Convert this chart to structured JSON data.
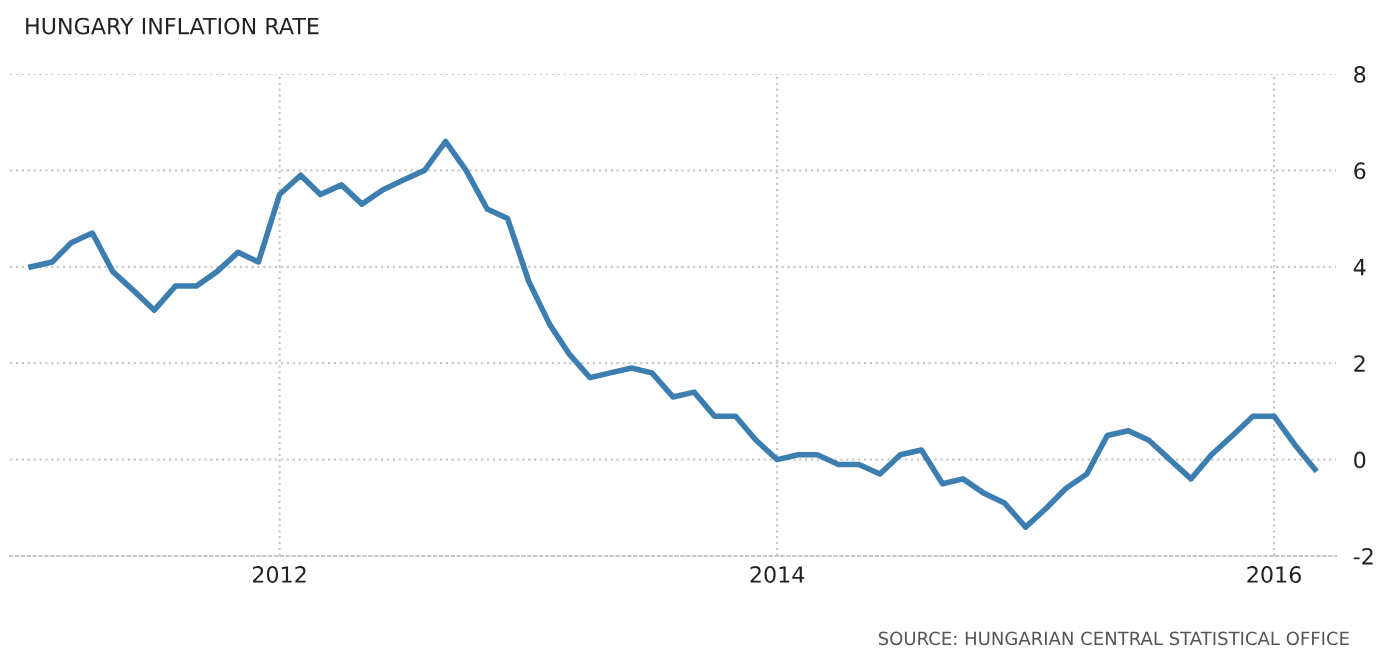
{
  "chart_data": {
    "type": "line",
    "title": "HUNGARY INFLATION RATE",
    "x": [
      "2011-01",
      "2011-02",
      "2011-03",
      "2011-04",
      "2011-05",
      "2011-06",
      "2011-07",
      "2011-08",
      "2011-09",
      "2011-10",
      "2011-11",
      "2011-12",
      "2012-01",
      "2012-02",
      "2012-03",
      "2012-04",
      "2012-05",
      "2012-06",
      "2012-07",
      "2012-08",
      "2012-09",
      "2012-10",
      "2012-11",
      "2012-12",
      "2013-01",
      "2013-02",
      "2013-03",
      "2013-04",
      "2013-05",
      "2013-06",
      "2013-07",
      "2013-08",
      "2013-09",
      "2013-10",
      "2013-11",
      "2013-12",
      "2014-01",
      "2014-02",
      "2014-03",
      "2014-04",
      "2014-05",
      "2014-06",
      "2014-07",
      "2014-08",
      "2014-09",
      "2014-10",
      "2014-11",
      "2014-12",
      "2015-01",
      "2015-02",
      "2015-03",
      "2015-04",
      "2015-05",
      "2015-06",
      "2015-07",
      "2015-08",
      "2015-09",
      "2015-10",
      "2015-11",
      "2015-12",
      "2016-01",
      "2016-02",
      "2016-03"
    ],
    "series": [
      {
        "color": "#3d7eb0",
        "values": [
          4.0,
          4.1,
          4.5,
          4.7,
          3.9,
          3.5,
          3.1,
          3.6,
          3.6,
          3.9,
          4.3,
          4.1,
          5.5,
          5.9,
          5.5,
          5.7,
          5.3,
          5.6,
          5.8,
          6.0,
          6.6,
          6.0,
          5.2,
          5.0,
          3.7,
          2.8,
          2.2,
          1.7,
          1.8,
          1.9,
          1.8,
          1.3,
          1.4,
          0.9,
          0.9,
          0.4,
          0.0,
          0.1,
          0.1,
          -0.1,
          -0.1,
          -0.3,
          0.1,
          0.2,
          -0.5,
          -0.4,
          -0.7,
          -0.9,
          -1.4,
          -1.0,
          -0.6,
          -0.3,
          0.5,
          0.6,
          0.4,
          0.0,
          -0.4,
          0.1,
          0.5,
          0.9,
          0.9,
          0.3,
          -0.2
        ]
      }
    ],
    "xlim": [
      "2010-12",
      "2016-04"
    ],
    "xticks": [
      "2012",
      "2014",
      "2016"
    ],
    "ylim": [
      -2,
      8
    ],
    "yticks": [
      -2,
      0,
      2,
      4,
      6,
      8
    ],
    "grid": true,
    "line_style": "solid",
    "marker": "none",
    "annotations": [
      "SOURCE: HUNGARIAN CENTRAL STATISTICAL OFFICE"
    ]
  }
}
